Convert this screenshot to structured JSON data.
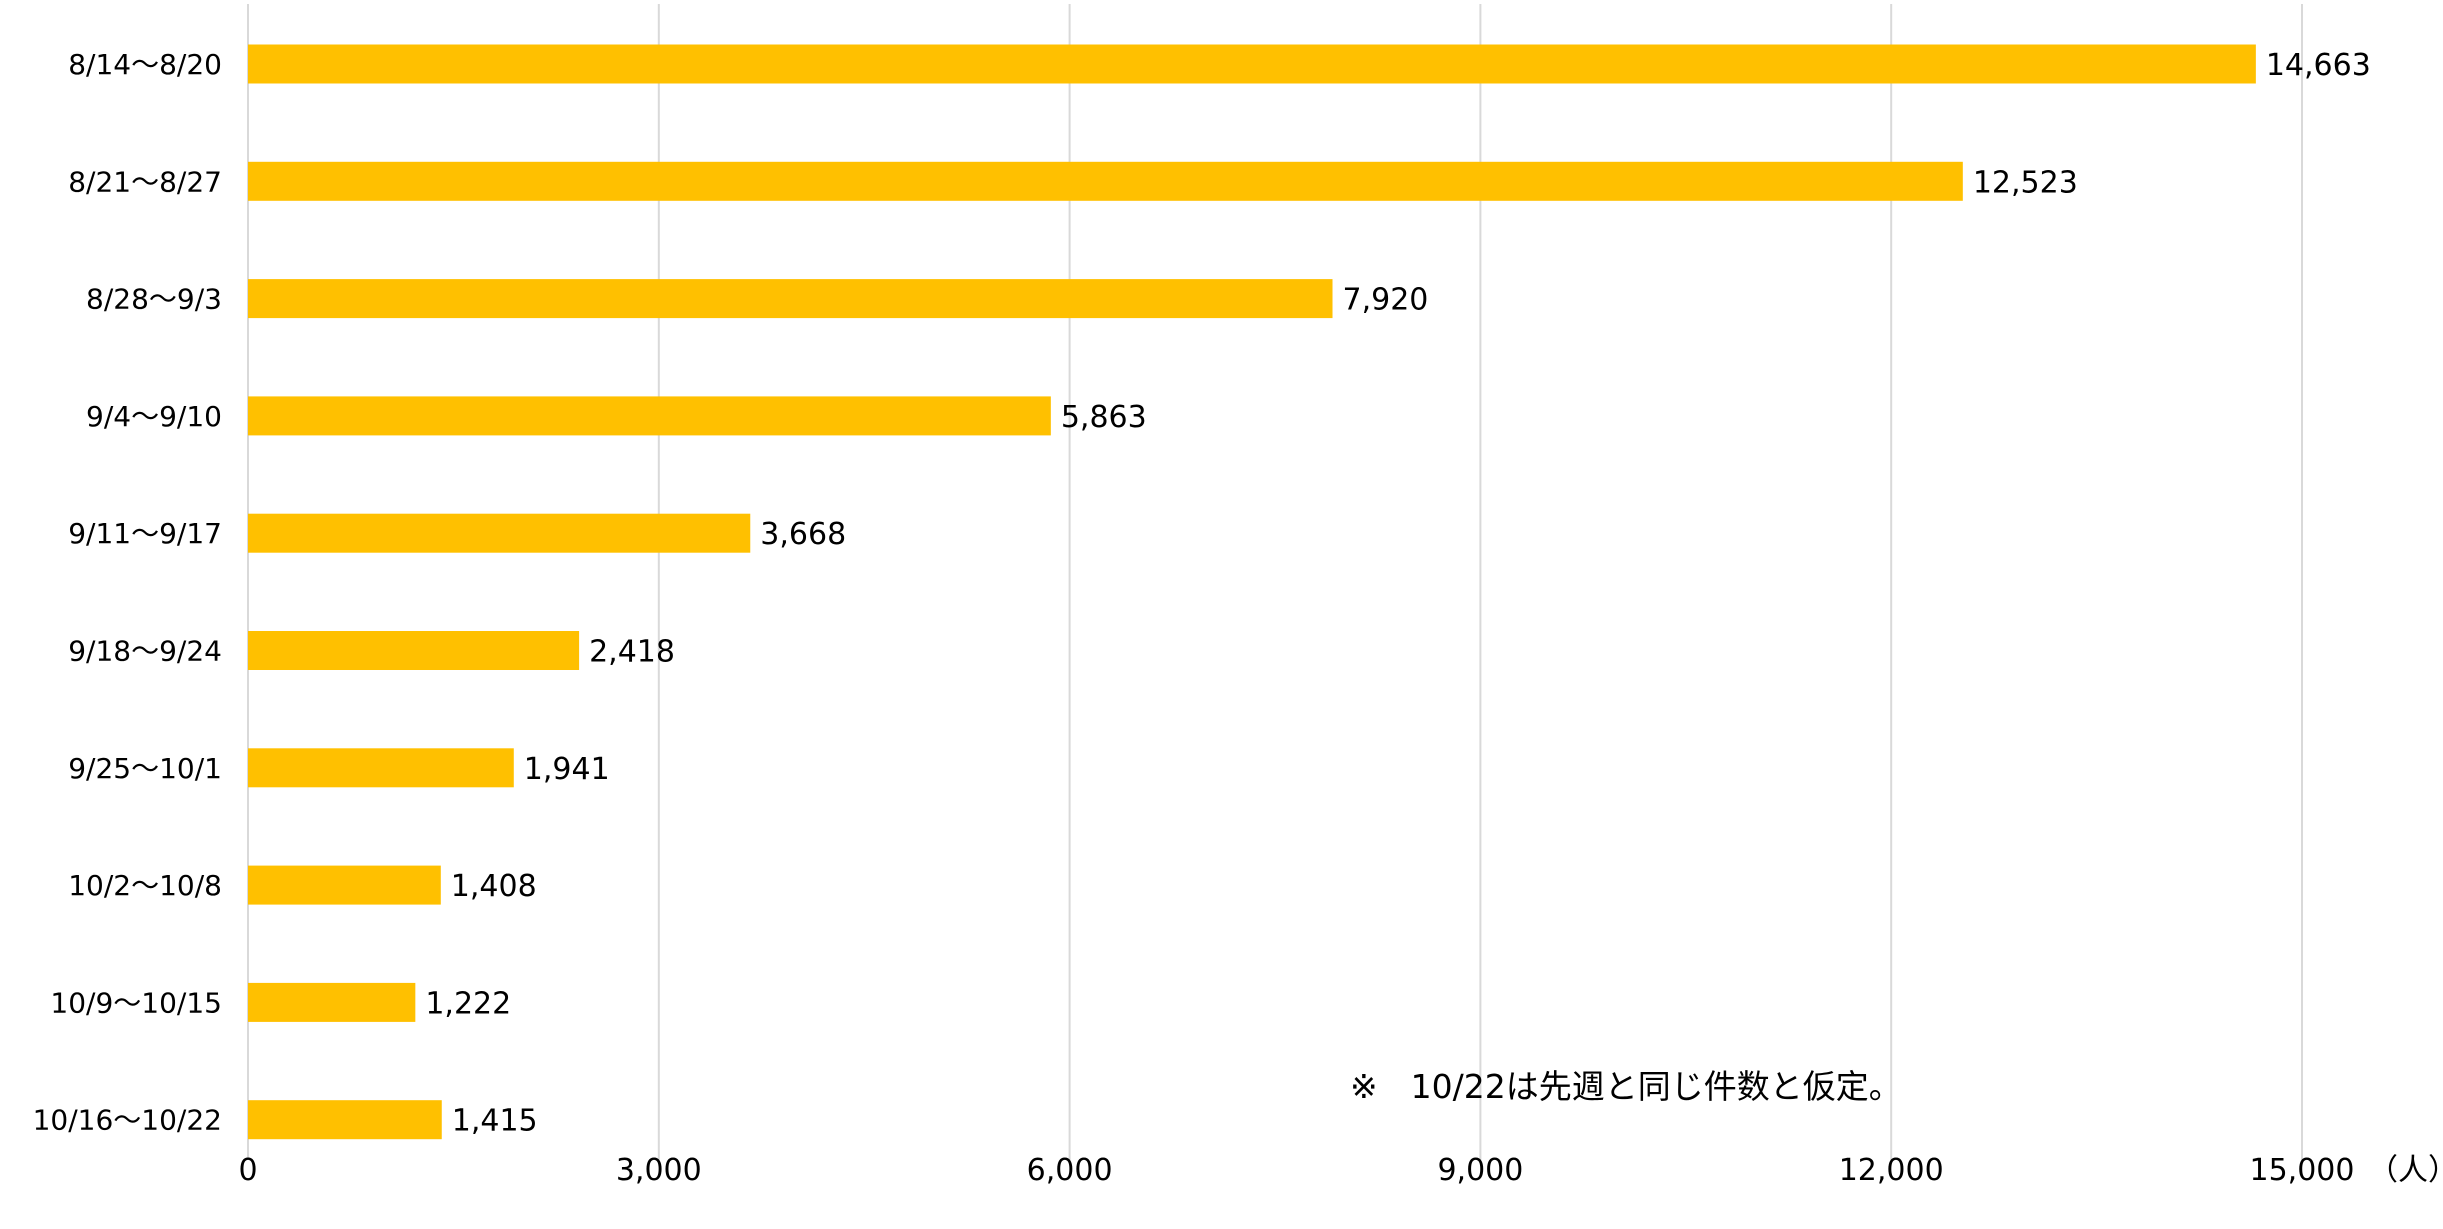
{
  "chart_data": {
    "type": "bar",
    "orientation": "horizontal",
    "categories": [
      "8/14〜8/20",
      "8/21〜8/27",
      "8/28〜9/3",
      "9/4〜9/10",
      "9/11〜9/17",
      "9/18〜9/24",
      "9/25〜10/1",
      "10/2〜10/8",
      "10/9〜10/15",
      "10/16〜10/22"
    ],
    "values": [
      14663,
      12523,
      7920,
      5863,
      3668,
      2418,
      1941,
      1408,
      1222,
      1415
    ],
    "value_labels": [
      "14,663",
      "12,523",
      "7,920",
      "5,863",
      "3,668",
      "2,418",
      "1,941",
      "1,408",
      "1,222",
      "1,415"
    ],
    "xlim": [
      0,
      15000
    ],
    "x_ticks": [
      0,
      3000,
      6000,
      9000,
      12000,
      15000
    ],
    "x_tick_labels": [
      "0",
      "3,000",
      "6,000",
      "9,000",
      "12,000",
      "15,000"
    ],
    "unit_label": "（人）",
    "bar_color": "#FFC000",
    "grid": true,
    "grid_color": "#d9d9d9",
    "annotation": "※　10/22は先週と同じ件数と仮定。"
  }
}
